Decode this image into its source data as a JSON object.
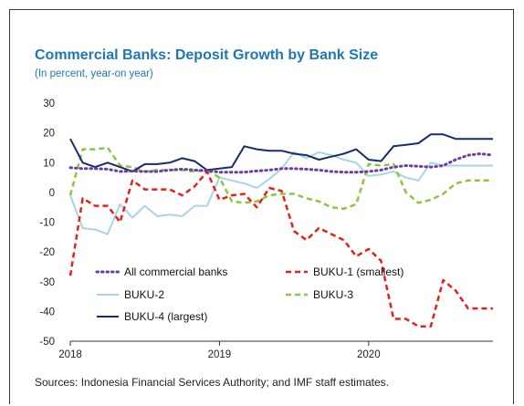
{
  "title": "Commercial Banks: Deposit Growth by Bank Size",
  "subtitle": "(In percent, year-on year)",
  "source": "Sources: Indonesia Financial Services Authority; and IMF staff estimates.",
  "chart_data": {
    "type": "line",
    "title": "Commercial Banks: Deposit Growth by Bank Size",
    "subtitle": "(In percent, year-on year)",
    "xlabel": "",
    "ylabel": "",
    "ylim": [
      -50,
      30
    ],
    "yticks": [
      "30",
      "20",
      "10",
      "0",
      "-10",
      "-20",
      "-30",
      "-40",
      "-50"
    ],
    "ytick_values": [
      30,
      20,
      10,
      0,
      -10,
      -20,
      -30,
      -40,
      -50
    ],
    "xticks": [
      "2018",
      "2019",
      "2020"
    ],
    "xtick_values": [
      0,
      12,
      24
    ],
    "x_unit": "months since Jan 2018",
    "grid": false,
    "legend_position": "bottom-left, inside plot",
    "x": [
      0,
      1,
      2,
      3,
      4,
      5,
      6,
      7,
      8,
      9,
      10,
      11,
      12,
      13,
      14,
      15,
      16,
      17,
      18,
      19,
      20,
      21,
      22,
      23,
      24,
      25,
      26,
      27,
      28,
      29,
      30,
      31,
      32,
      33,
      34
    ],
    "series": [
      {
        "name": "All commercial banks",
        "color": "#6b3fa0",
        "style": "dotted",
        "values": [
          8.3,
          8.0,
          8.0,
          7.8,
          7.0,
          7.2,
          7.0,
          7.0,
          7.5,
          7.8,
          7.5,
          7.3,
          6.8,
          6.8,
          6.8,
          7.2,
          7.5,
          8.0,
          8.0,
          7.8,
          7.5,
          7.0,
          6.8,
          6.8,
          7.0,
          7.5,
          8.5,
          9.0,
          8.8,
          8.5,
          9.0,
          11.0,
          12.5,
          13.0,
          12.5
        ]
      },
      {
        "name": "BUKU-1 (smallest)",
        "color": "#e8201a",
        "style": "dashed",
        "values": [
          -28.0,
          -2.0,
          -4.5,
          -4.5,
          -10.0,
          4.0,
          1.0,
          1.0,
          1.0,
          -1.0,
          2.0,
          7.0,
          -2.5,
          -1.0,
          -0.5,
          -5.0,
          1.5,
          0.5,
          -13.0,
          -16.0,
          -12.0,
          -14.0,
          -16.0,
          -21.5,
          -19.0,
          -23.0,
          -42.5,
          -42.5,
          -45.0,
          -45.0,
          -29.5,
          -33.0,
          -39.0,
          -39.0,
          -39.0
        ]
      },
      {
        "name": "BUKU-2",
        "color": "#a8d4e6",
        "style": "solid",
        "values": [
          -1.0,
          -12.0,
          -12.5,
          -14.0,
          -4.0,
          -8.5,
          -4.5,
          -8.0,
          -7.5,
          -8.0,
          -4.5,
          -4.5,
          5.0,
          4.0,
          3.0,
          1.5,
          4.5,
          8.0,
          13.5,
          11.5,
          13.5,
          12.5,
          11.0,
          10.0,
          5.5,
          6.0,
          7.0,
          5.0,
          4.0,
          10.0,
          9.0,
          9.0,
          9.0,
          9.0,
          9.0
        ]
      },
      {
        "name": "BUKU-3",
        "color": "#8cc63f",
        "style": "dashed",
        "values": [
          -1.0,
          14.5,
          14.5,
          15.0,
          9.0,
          8.5,
          7.0,
          7.5,
          7.5,
          7.5,
          7.0,
          7.5,
          5.0,
          -3.0,
          -3.5,
          -3.0,
          -1.0,
          -0.5,
          -0.5,
          -2.0,
          -3.0,
          -5.0,
          -5.5,
          -4.0,
          9.5,
          9.0,
          9.5,
          0.0,
          -3.5,
          -2.5,
          -0.5,
          3.0,
          4.0,
          4.0,
          4.0
        ]
      },
      {
        "name": "BUKU-4 (largest)",
        "color": "#1a2b6b",
        "style": "solid",
        "values": [
          18.0,
          10.0,
          8.5,
          10.0,
          8.5,
          7.0,
          9.5,
          9.5,
          10.0,
          11.5,
          10.5,
          7.5,
          8.0,
          8.5,
          15.5,
          14.5,
          14.0,
          14.0,
          13.0,
          12.5,
          11.0,
          12.0,
          13.0,
          14.5,
          11.0,
          10.5,
          15.5,
          16.0,
          16.5,
          19.5,
          19.5,
          18.0,
          18.0,
          18.0,
          18.0
        ]
      }
    ]
  }
}
